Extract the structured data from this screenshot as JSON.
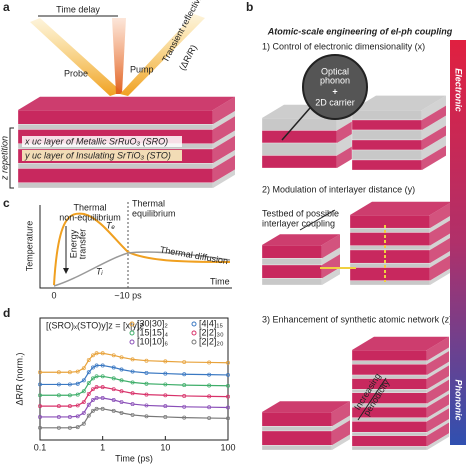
{
  "panel_labels": {
    "a": "a",
    "b": "b",
    "c": "c",
    "d": "d"
  },
  "panel_a": {
    "time_delay": "Time delay",
    "probe": "Probe",
    "pump": "Pump",
    "reflectivity": "Transient reflectivity",
    "reflectivity_symbol": "(ΔR/R)",
    "sro_layer": "x uc layer of Metallic SrRuO₃ (SRO)",
    "sto_layer": "y uc layer of Insulating SrTiO₃ (STO)",
    "repetition": "z repetition"
  },
  "panel_b": {
    "title": "Atomic-scale engineering of el-ph coupling",
    "step1": "1) Control of electronic dimensionality (x)",
    "optical_phonon_1": "Optical",
    "optical_phonon_2": "phonon",
    "plus": "+",
    "carrier": "2D carrier",
    "step2": "2) Modulation of interlayer distance (y)",
    "testbed_1": "Testbed of possible",
    "testbed_2": "interlayer coupling",
    "step3": "3) Enhancement of synthetic atomic network (z)",
    "periodicity_1": "Increasing",
    "periodicity_2": "periodicity",
    "electronic": "Electronic",
    "phononic": "Phononic"
  },
  "panel_c": {
    "non_eq_1": "Thermal",
    "non_eq_2": "non-equilibrium",
    "eq_1": "Thermal",
    "eq_2": "equilibrium",
    "y_label": "Temperature",
    "energy_1": "Energy",
    "energy_2": "transfer",
    "te": "Tₑ",
    "ti": "Tᵢ",
    "diffusion": "Thermal diffusion",
    "zero": "0",
    "ten_ps": "~10 ps",
    "x_label": "Time"
  },
  "chart_data": {
    "type": "line",
    "x_label": "Time (ps)",
    "y_label": "ΔR/R (norm.)",
    "legend_title": "[(SRO)ₓ(STO)y]z = [x|y]z",
    "log_x": true,
    "x": [
      0.1,
      0.2,
      0.3,
      0.4,
      0.5,
      0.6,
      0.7,
      0.8,
      1,
      1.5,
      2,
      3,
      5,
      10,
      20,
      50,
      100
    ],
    "xlim": [
      0.1,
      100
    ],
    "xticks": [
      0.1,
      1,
      10,
      100
    ],
    "ylim": [
      0,
      9
    ],
    "series": [
      {
        "name": "[30|30]₂",
        "color": "#e8a33c",
        "values": [
          5.0,
          5.0,
          5.0,
          5.05,
          5.3,
          5.9,
          6.25,
          6.4,
          6.4,
          6.25,
          6.1,
          5.95,
          5.85,
          5.8,
          5.75,
          5.72,
          5.7
        ]
      },
      {
        "name": "[4|4]₁₅",
        "color": "#3a78c2",
        "values": [
          4.1,
          4.1,
          4.1,
          4.15,
          4.4,
          5.0,
          5.35,
          5.5,
          5.5,
          5.35,
          5.2,
          5.05,
          4.95,
          4.9,
          4.85,
          4.82,
          4.8
        ]
      },
      {
        "name": "[15|15]₄",
        "color": "#3fae6a",
        "values": [
          3.3,
          3.3,
          3.3,
          3.35,
          3.6,
          4.2,
          4.55,
          4.7,
          4.7,
          4.55,
          4.4,
          4.25,
          4.15,
          4.1,
          4.05,
          4.02,
          4.0
        ]
      },
      {
        "name": "[2|2]₃₀",
        "color": "#d8326a",
        "values": [
          2.5,
          2.5,
          2.5,
          2.55,
          2.8,
          3.4,
          3.75,
          3.9,
          3.9,
          3.75,
          3.6,
          3.45,
          3.35,
          3.3,
          3.25,
          3.22,
          3.2
        ]
      },
      {
        "name": "[10|10]₆",
        "color": "#8a4fb8",
        "values": [
          1.7,
          1.7,
          1.7,
          1.75,
          2.0,
          2.6,
          2.95,
          3.1,
          3.1,
          2.95,
          2.8,
          2.65,
          2.55,
          2.5,
          2.45,
          2.42,
          2.4
        ]
      },
      {
        "name": "[2|2]₂₀",
        "color": "#777777",
        "values": [
          0.9,
          0.9,
          0.9,
          0.95,
          1.2,
          1.8,
          2.15,
          2.3,
          2.3,
          2.15,
          2.0,
          1.85,
          1.75,
          1.7,
          1.65,
          1.62,
          1.6
        ]
      }
    ]
  }
}
